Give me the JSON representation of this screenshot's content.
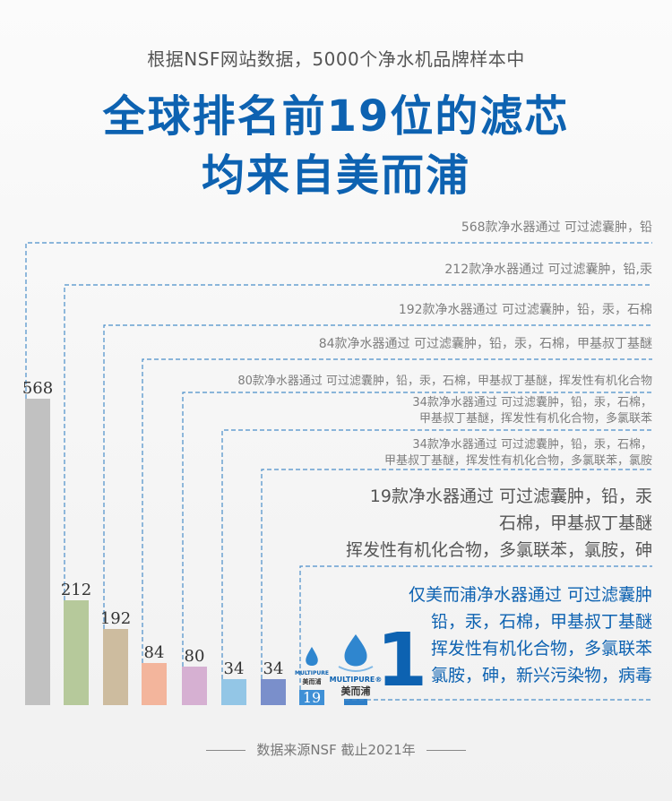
{
  "header": {
    "subtitle": "根据NSF网站数据，5000个净水机品牌样本中",
    "title_line1": "全球排名前19位的滤芯",
    "title_line2": "均来自美而浦"
  },
  "footer": {
    "source": "数据来源NSF 截止2021年"
  },
  "logo": {
    "text_en": "MULTIPURE",
    "text_cn": "美而浦",
    "reg": "®"
  },
  "colors": {
    "accent": "#0d62b1",
    "dash": "#4a8ec9",
    "bars": [
      "#c1c1c1",
      "#b6c99b",
      "#cdbc9f",
      "#f3b59c",
      "#d6b0d2",
      "#93c6e6",
      "#7a8fcb",
      "#3f90d6",
      "#2f7fc8"
    ]
  },
  "chart_data": {
    "type": "bar",
    "categories": [
      "568",
      "212",
      "192",
      "84",
      "80",
      "34",
      "34",
      "19",
      "1"
    ],
    "values": [
      568,
      212,
      192,
      84,
      80,
      34,
      34,
      19,
      1
    ],
    "value_labels": [
      "568",
      "212",
      "192",
      "84",
      "80",
      "34",
      "34",
      "19",
      ""
    ],
    "big_label": "1",
    "annotations": [
      [
        "568款净水器通过 可过滤囊肿，铅"
      ],
      [
        "212款净水器通过 可过滤囊肿，铅,汞"
      ],
      [
        "192款净水器通过 可过滤囊肿，铅，汞，石棉"
      ],
      [
        "84款净水器通过 可过滤囊肿，铅，汞，石棉，甲基叔丁基醚"
      ],
      [
        "80款净水器通过 可过滤囊肿，铅，汞，石棉，甲基叔丁基醚，挥发性有机化合物"
      ],
      [
        "34款净水器通过 可过滤囊肿，铅，汞，石棉，",
        "甲基叔丁基醚，挥发性有机化合物，多氯联苯"
      ],
      [
        "34款净水器通过 可过滤囊肿，铅，汞，石棉，",
        "甲基叔丁基醚，挥发性有机化合物，多氯联苯，氯胺"
      ],
      [
        "19款净水器通过 可过滤囊肿，铅，汞",
        "石棉，甲基叔丁基醚",
        "挥发性有机化合物，多氯联苯，氯胺，砷"
      ],
      [
        "仅美而浦净水器通过 可过滤囊肿",
        "铅，汞，石棉，甲基叔丁基醚",
        "挥发性有机化合物，多氯联苯",
        "氯胺，砷，新兴污染物，病毒"
      ]
    ],
    "title": "全球排名前19位的滤芯 均来自美而浦",
    "xlabel": "",
    "ylabel": "",
    "grid": false
  }
}
